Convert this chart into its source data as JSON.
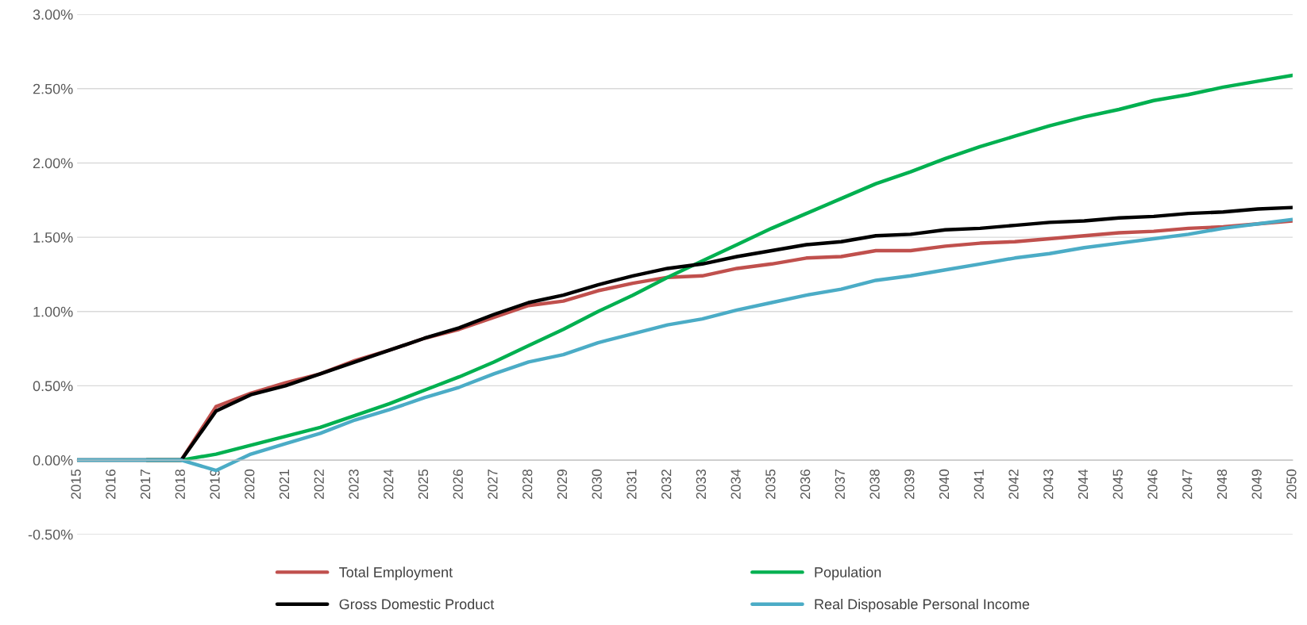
{
  "chart_data": {
    "type": "line",
    "categories": [
      "2015",
      "2016",
      "2017",
      "2018",
      "2019",
      "2020",
      "2021",
      "2022",
      "2023",
      "2024",
      "2025",
      "2026",
      "2027",
      "2028",
      "2029",
      "2030",
      "2031",
      "2032",
      "2033",
      "2034",
      "2035",
      "2036",
      "2037",
      "2038",
      "2039",
      "2040",
      "2041",
      "2042",
      "2043",
      "2044",
      "2045",
      "2046",
      "2047",
      "2048",
      "2049",
      "2050"
    ],
    "series": [
      {
        "name": "Total Employment",
        "color": "#c0504d",
        "values": [
          null,
          null,
          0,
          0,
          0.36,
          0.45,
          0.52,
          0.58,
          0.67,
          0.74,
          0.82,
          0.88,
          0.96,
          1.04,
          1.07,
          1.14,
          1.19,
          1.23,
          1.24,
          1.29,
          1.32,
          1.36,
          1.37,
          1.41,
          1.41,
          1.44,
          1.46,
          1.47,
          1.49,
          1.51,
          1.53,
          1.54,
          1.56,
          1.57,
          1.59,
          1.61
        ]
      },
      {
        "name": "Population",
        "color": "#00b050",
        "values": [
          null,
          null,
          0,
          0,
          0.04,
          0.1,
          0.16,
          0.22,
          0.3,
          0.38,
          0.47,
          0.56,
          0.66,
          0.77,
          0.88,
          1.0,
          1.11,
          1.23,
          1.34,
          1.45,
          1.56,
          1.66,
          1.76,
          1.86,
          1.94,
          2.03,
          2.11,
          2.18,
          2.25,
          2.31,
          2.36,
          2.42,
          2.46,
          2.51,
          2.55,
          2.59
        ]
      },
      {
        "name": "Gross Domestic Product",
        "color": "#000000",
        "values": [
          0,
          0,
          0,
          0,
          0.33,
          0.44,
          0.5,
          0.58,
          0.66,
          0.74,
          0.82,
          0.89,
          0.98,
          1.06,
          1.11,
          1.18,
          1.24,
          1.29,
          1.32,
          1.37,
          1.41,
          1.45,
          1.47,
          1.51,
          1.52,
          1.55,
          1.56,
          1.58,
          1.6,
          1.61,
          1.63,
          1.64,
          1.66,
          1.67,
          1.69,
          1.7
        ]
      },
      {
        "name": "Real Disposable Personal Income",
        "color": "#4bacc6",
        "values": [
          0,
          0,
          0,
          0,
          -0.07,
          0.04,
          0.11,
          0.18,
          0.27,
          0.34,
          0.42,
          0.49,
          0.58,
          0.66,
          0.71,
          0.79,
          0.85,
          0.91,
          0.95,
          1.01,
          1.06,
          1.11,
          1.15,
          1.21,
          1.24,
          1.28,
          1.32,
          1.36,
          1.39,
          1.43,
          1.46,
          1.49,
          1.52,
          1.56,
          1.59,
          1.62
        ]
      }
    ],
    "ylim": [
      -0.5,
      3
    ],
    "yticks": [
      {
        "value": -0.5,
        "label": "-0.50%"
      },
      {
        "value": 0,
        "label": "0.00%"
      },
      {
        "value": 0.5,
        "label": "0.50%"
      },
      {
        "value": 1,
        "label": "1.00%"
      },
      {
        "value": 1.5,
        "label": "1.50%"
      },
      {
        "value": 2,
        "label": "2.00%"
      },
      {
        "value": 2.5,
        "label": "2.50%"
      },
      {
        "value": 3,
        "label": "3.00%"
      }
    ],
    "grid": "y",
    "legend": "bottom",
    "marker": "none",
    "line_style": "solid"
  }
}
